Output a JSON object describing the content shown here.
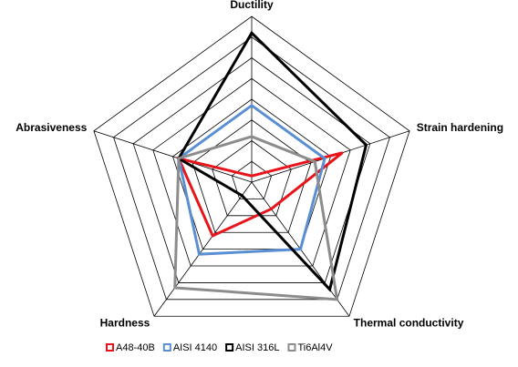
{
  "chart_data": {
    "type": "radar",
    "categories": [
      "Ductility",
      "Strain hardening",
      "Thermal conductivity",
      "Hardness",
      "Abrasiveness"
    ],
    "series": [
      {
        "name": "A48-40B",
        "color": "#e8141b",
        "values": [
          0.3,
          4.6,
          1.6,
          3.2,
          3.7
        ]
      },
      {
        "name": "AISI 4140",
        "color": "#5b8fd4",
        "values": [
          3.7,
          3.7,
          4,
          4.3,
          3.7
        ]
      },
      {
        "name": "AISI 316L",
        "color": "#000000",
        "values": [
          7.2,
          5.8,
          6.4,
          0.8,
          3.7
        ]
      },
      {
        "name": "Ti6Al4V",
        "color": "#8c8c8c",
        "values": [
          2.2,
          3.2,
          7,
          6.3,
          3.7
        ]
      }
    ],
    "ylim": [
      0,
      8
    ],
    "yticks": [
      1,
      2,
      3,
      4,
      5,
      6,
      7,
      8
    ],
    "grid": true,
    "legend": "bottom"
  }
}
